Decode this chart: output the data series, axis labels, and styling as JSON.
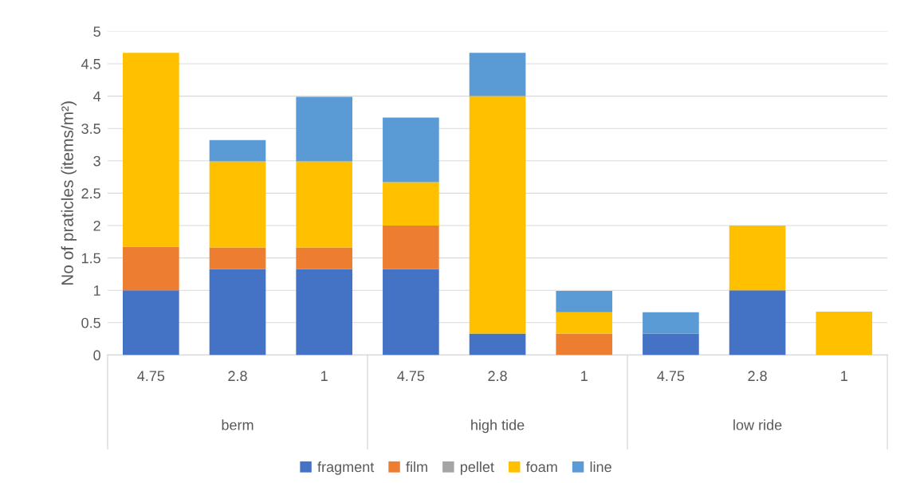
{
  "chart_data": {
    "type": "bar",
    "stacked": true,
    "ylabel": "No of praticles (items/m²)",
    "categories": [
      "4.75",
      "2.8",
      "1",
      "4.75",
      "2.8",
      "1",
      "4.75",
      "2.8",
      "1"
    ],
    "annotations": [
      "berm",
      "high tide",
      "low ride"
    ],
    "series": [
      {
        "name": "fragment",
        "color": "#4472c4",
        "values": [
          1,
          1.33,
          1.33,
          1.33,
          0.33,
          0,
          0.33,
          1,
          0
        ]
      },
      {
        "name": "film",
        "color": "#ed7d31",
        "values": [
          0.67,
          0.33,
          0.33,
          0.67,
          0,
          0.33,
          0,
          0,
          0
        ]
      },
      {
        "name": "pellet",
        "color": "#a5a5a5",
        "values": [
          0,
          0,
          0,
          0,
          0,
          0,
          0,
          0,
          0
        ]
      },
      {
        "name": "foam",
        "color": "#ffc000",
        "values": [
          3.0,
          1.33,
          1.33,
          0.67,
          3.67,
          0.33,
          0,
          1,
          0.67
        ]
      },
      {
        "name": "line",
        "color": "#5b9bd5",
        "values": [
          0,
          0.33,
          1.0,
          1.0,
          0.67,
          0.33,
          0.33,
          0,
          0
        ]
      }
    ],
    "ylim": [
      0,
      5
    ],
    "yticks": [
      0,
      0.5,
      1,
      1.5,
      2,
      2.5,
      3,
      3.5,
      4,
      4.5,
      5
    ],
    "grid": "y",
    "legend": "bottom"
  }
}
